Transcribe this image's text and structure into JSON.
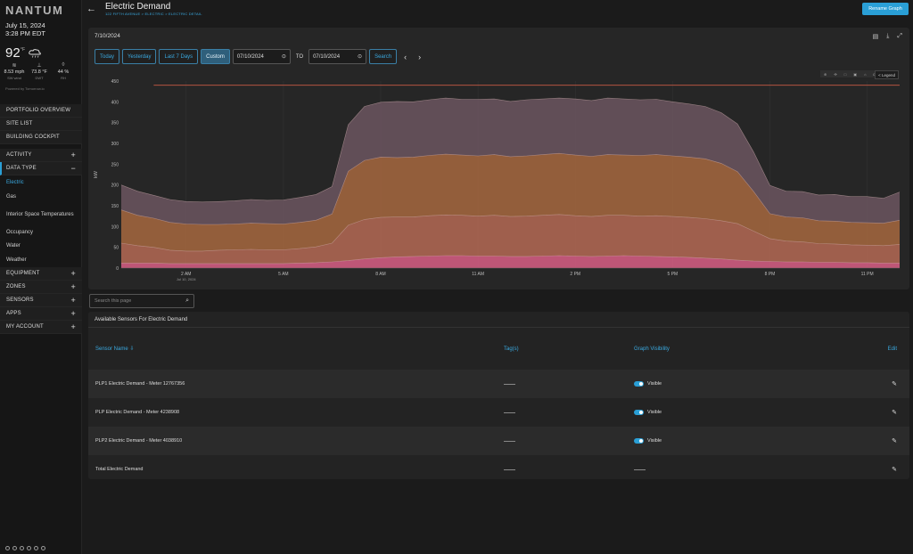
{
  "app": {
    "logo": "NANTUM"
  },
  "weather": {
    "date": "July 15, 2024",
    "time": "3:28 PM EDT",
    "temp": "92",
    "temp_unit": "°F",
    "wind_value": "8.53 mph",
    "wind_label": "SW wind",
    "dew_value": "73.8 °F",
    "dew_label": "DWT",
    "humidity_value": "44 %",
    "humidity_label": "RH",
    "powered": "Powered by Tomorrow.io"
  },
  "nav": {
    "top": [
      "PORTFOLIO OVERVIEW",
      "SITE LIST",
      "BUILDING COCKPIT"
    ],
    "activity": "ACTIVITY",
    "data_type": "DATA TYPE",
    "data_types": [
      "Electric",
      "Gas",
      "Interior Space Temperatures",
      "Occupancy",
      "Water",
      "Weather"
    ],
    "bottom": [
      "EQUIPMENT",
      "ZONES",
      "SENSORS",
      "APPS",
      "MY ACCOUNT"
    ],
    "plus": "+",
    "minus": "−"
  },
  "header": {
    "back": "←",
    "title": "Electric Demand",
    "breadcrumb": "122 FIFTH AVENUE > ELECTRIC > ELECTRIC DETAIL",
    "rename_button": "Rename Graph"
  },
  "chart_panel": {
    "date": "7/10/2024",
    "buttons": {
      "today": "Today",
      "yesterday": "Yesterday",
      "last7": "Last 7 Days",
      "custom": "Custom",
      "search": "Search"
    },
    "from_date": "07/10/2024",
    "to_label": "TO",
    "to_date": "07/10/2024",
    "legend_button": "< Legend",
    "prev": "‹",
    "next": "›"
  },
  "chart_data": {
    "type": "area",
    "ylabel": "kW",
    "ylim": [
      0,
      450
    ],
    "yticks": [
      0,
      50,
      100,
      150,
      200,
      250,
      300,
      350,
      400,
      450
    ],
    "xticks": [
      {
        "t": 2,
        "label": "2 AM",
        "sub": "Jul 10, 2024"
      },
      {
        "t": 5,
        "label": "5 AM"
      },
      {
        "t": 8,
        "label": "8 AM"
      },
      {
        "t": 11,
        "label": "11 AM"
      },
      {
        "t": 14,
        "label": "2 PM"
      },
      {
        "t": 17,
        "label": "5 PM"
      },
      {
        "t": 20,
        "label": "8 PM"
      },
      {
        "t": 23,
        "label": "11 PM"
      }
    ],
    "xlim": [
      0,
      24
    ],
    "reference_line": 440,
    "stacked": true,
    "x": [
      0,
      0.5,
      1,
      1.5,
      2,
      2.5,
      3,
      3.5,
      4,
      4.5,
      5,
      5.5,
      6,
      6.5,
      7,
      7.5,
      8,
      8.5,
      9,
      9.5,
      10,
      10.5,
      11,
      11.5,
      12,
      12.5,
      13,
      13.5,
      14,
      14.5,
      15,
      15.5,
      16,
      16.5,
      17,
      17.5,
      18,
      18.5,
      19,
      19.5,
      20,
      20.5,
      21,
      21.5,
      22,
      22.5,
      23,
      23.5,
      24
    ],
    "series": [
      {
        "color": "#d95f86",
        "values": [
          12,
          12,
          12,
          11,
          11,
          11,
          11,
          11,
          11,
          11,
          11,
          12,
          13,
          15,
          18,
          22,
          25,
          27,
          28,
          29,
          30,
          30,
          29,
          29,
          28,
          28,
          29,
          30,
          29,
          28,
          29,
          30,
          29,
          28,
          27,
          26,
          24,
          22,
          19,
          17,
          16,
          15,
          15,
          14,
          14,
          13,
          13,
          12,
          12
        ]
      },
      {
        "color": "#b56a55",
        "values": [
          48,
          42,
          38,
          32,
          30,
          30,
          32,
          33,
          34,
          33,
          33,
          35,
          38,
          45,
          85,
          95,
          97,
          96,
          95,
          97,
          98,
          97,
          96,
          98,
          96,
          97,
          98,
          99,
          97,
          96,
          98,
          97,
          96,
          98,
          97,
          96,
          95,
          92,
          88,
          72,
          55,
          50,
          48,
          45,
          44,
          43,
          42,
          42,
          45
        ]
      },
      {
        "color": "#a7683f",
        "values": [
          80,
          73,
          70,
          67,
          65,
          64,
          62,
          62,
          63,
          63,
          62,
          63,
          64,
          70,
          130,
          142,
          145,
          143,
          144,
          145,
          146,
          145,
          145,
          146,
          144,
          145,
          146,
          147,
          146,
          145,
          146,
          145,
          146,
          147,
          146,
          145,
          144,
          138,
          125,
          95,
          60,
          58,
          58,
          55,
          55,
          54,
          54,
          54,
          58
        ]
      },
      {
        "color": "#6c5660",
        "values": [
          60,
          58,
          55,
          55,
          54,
          54,
          55,
          56,
          57,
          56,
          58,
          60,
          62,
          66,
          112,
          130,
          132,
          135,
          133,
          134,
          135,
          134,
          136,
          134,
          133,
          135,
          134,
          133,
          135,
          134,
          136,
          135,
          134,
          133,
          130,
          128,
          126,
          122,
          115,
          95,
          68,
          62,
          63,
          62,
          64,
          62,
          63,
          60,
          68
        ]
      }
    ]
  },
  "search": {
    "placeholder": "Search this page",
    "icon": "search-icon"
  },
  "sensors": {
    "title": "Available Sensors For Electric Demand",
    "headers": {
      "name": "Sensor Name ⇩",
      "tags": "Tag(s)",
      "visibility": "Graph Visibility",
      "edit": "Edit"
    },
    "visible_label": "Visible",
    "rows": [
      {
        "name": "PLP1 Electric Demand - Meter 12767356",
        "visible": true
      },
      {
        "name": "PLP Electric Demand - Meter 4238908",
        "visible": true
      },
      {
        "name": "PLP2 Electric Demand - Meter 4038910",
        "visible": true
      },
      {
        "name": "Total Electric Demand",
        "visible": false
      }
    ]
  },
  "colors": {
    "accent": "#2a9fd6",
    "panel": "#262626",
    "reference_line": "#c85a44"
  }
}
